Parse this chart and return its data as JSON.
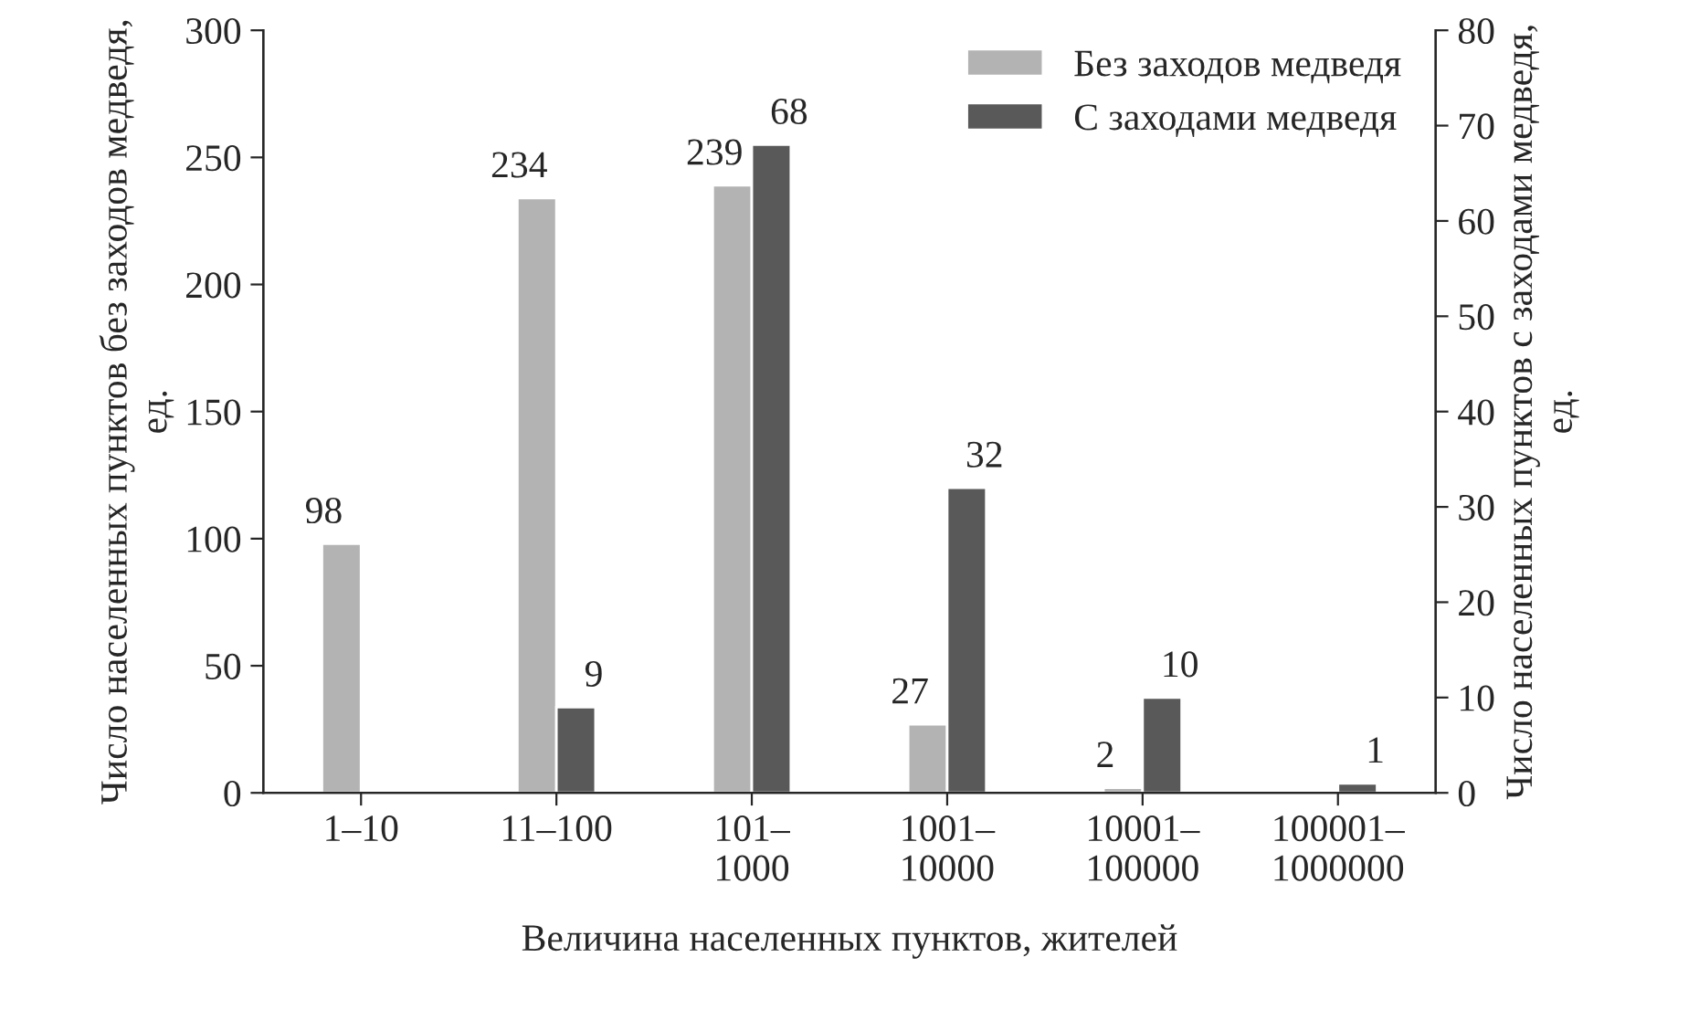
{
  "chart_data": {
    "type": "bar",
    "xlabel": "Величина населенных пунктов, жителей",
    "ylabel": "Число населенных пунктов без заходов медведя, ед.",
    "y2label": "Число населенных пунктов с заходами медведя, ед.",
    "categories": [
      "1–10",
      "11–100",
      "101–\n1000",
      "1001–\n10000",
      "10001–\n100000",
      "100001–\n1000000"
    ],
    "series": [
      {
        "name": "Без заходов медведя",
        "color": "#b3b3b3",
        "values": [
          98,
          234,
          239,
          27,
          2,
          null
        ]
      },
      {
        "name": "С заходами медведя",
        "color": "#595959",
        "axis": "y2",
        "values": [
          null,
          9,
          68,
          32,
          10,
          1
        ]
      }
    ],
    "ylim": [
      0,
      300
    ],
    "yticks": [
      0,
      50,
      100,
      150,
      200,
      250,
      300
    ],
    "y2lim": [
      0,
      80
    ],
    "y2ticks": [
      0,
      10,
      20,
      30,
      40,
      50,
      60,
      70,
      80
    ],
    "data_labels": true,
    "legend": "top right",
    "grid": false
  }
}
